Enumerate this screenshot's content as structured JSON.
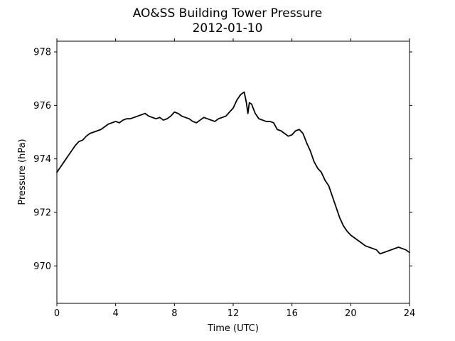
{
  "chart_data": {
    "type": "line",
    "title": "AO&SS Building Tower Pressure",
    "subtitle": "2012-01-10",
    "xlabel": "Time (UTC)",
    "ylabel": "Pressure (hPa)",
    "xlim": [
      0,
      24
    ],
    "ylim": [
      968.6,
      978.4
    ],
    "xticks": [
      0,
      4,
      8,
      12,
      16,
      20,
      24
    ],
    "yticks": [
      970,
      972,
      974,
      976,
      978
    ],
    "grid": false,
    "line_color": "#000000",
    "series": [
      {
        "x": [
          0,
          0.25,
          0.5,
          0.75,
          1,
          1.25,
          1.5,
          1.75,
          2,
          2.25,
          2.5,
          2.75,
          3,
          3.25,
          3.5,
          3.75,
          4,
          4.25,
          4.5,
          4.75,
          5,
          5.25,
          5.5,
          5.75,
          6,
          6.25,
          6.5,
          6.75,
          7,
          7.25,
          7.5,
          7.75,
          8,
          8.25,
          8.5,
          8.75,
          9,
          9.25,
          9.5,
          9.75,
          10,
          10.25,
          10.5,
          10.75,
          11,
          11.25,
          11.5,
          11.75,
          12,
          12.25,
          12.5,
          12.75,
          12.9,
          13,
          13.1,
          13.25,
          13.5,
          13.75,
          14,
          14.25,
          14.5,
          14.75,
          15,
          15.25,
          15.5,
          15.75,
          16,
          16.25,
          16.5,
          16.75,
          17,
          17.25,
          17.5,
          17.75,
          18,
          18.25,
          18.5,
          18.75,
          19,
          19.25,
          19.5,
          19.75,
          20,
          20.25,
          20.5,
          20.75,
          21,
          21.25,
          21.5,
          21.75,
          22,
          22.25,
          22.5,
          22.75,
          23,
          23.25,
          23.5,
          23.75,
          24
        ],
        "y": [
          973.5,
          973.7,
          973.9,
          974.1,
          974.3,
          974.5,
          974.65,
          974.7,
          974.85,
          974.95,
          975.0,
          975.05,
          975.1,
          975.2,
          975.3,
          975.35,
          975.4,
          975.35,
          975.45,
          975.5,
          975.5,
          975.55,
          975.6,
          975.65,
          975.7,
          975.6,
          975.55,
          975.5,
          975.55,
          975.45,
          975.5,
          975.6,
          975.75,
          975.7,
          975.6,
          975.55,
          975.5,
          975.4,
          975.35,
          975.45,
          975.55,
          975.5,
          975.45,
          975.4,
          975.5,
          975.55,
          975.6,
          975.75,
          975.9,
          976.2,
          976.4,
          976.5,
          976.1,
          975.7,
          976.1,
          976.05,
          975.7,
          975.5,
          975.45,
          975.4,
          975.4,
          975.35,
          975.1,
          975.05,
          974.95,
          974.85,
          974.9,
          975.05,
          975.1,
          974.95,
          974.6,
          974.3,
          973.9,
          973.65,
          973.5,
          973.2,
          973.0,
          972.6,
          972.2,
          971.8,
          971.5,
          971.3,
          971.15,
          971.05,
          970.95,
          970.85,
          970.75,
          970.7,
          970.65,
          970.6,
          970.45,
          970.5,
          970.55,
          970.6,
          970.65,
          970.7,
          970.65,
          970.6,
          970.5
        ]
      }
    ]
  }
}
